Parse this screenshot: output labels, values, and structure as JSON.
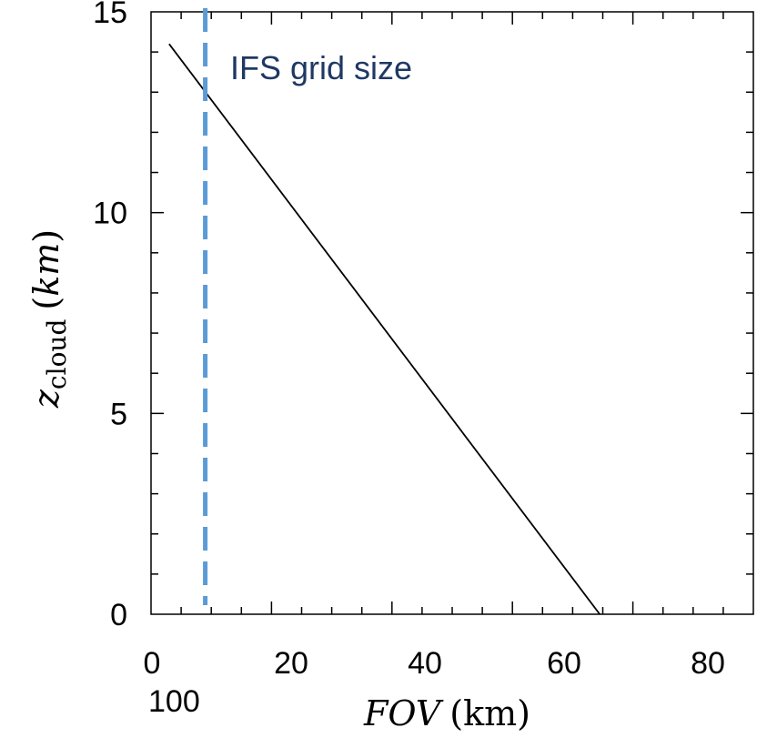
{
  "chart_data": {
    "type": "line",
    "title": "",
    "xlabel": {
      "italic": "FOV",
      "rest": "(km)"
    },
    "ylabel": {
      "italic": "z",
      "subscript": "cloud",
      "rest": "(km)",
      "rest_italic": "km"
    },
    "xlim": [
      0,
      100
    ],
    "ylim": [
      0,
      15
    ],
    "x_ticks": [
      0,
      20,
      40,
      60,
      80
    ],
    "x_tick_labels": [
      "0",
      "20",
      "40",
      "60",
      "80"
    ],
    "x_tick_label_end": "100",
    "y_ticks": [
      0,
      5,
      10,
      15
    ],
    "y_tick_labels": [
      "0",
      "5",
      "10",
      "15"
    ],
    "series": [
      {
        "x": [
          3,
          74.5
        ],
        "y": [
          14.2,
          0
        ],
        "color": "#000000"
      }
    ],
    "reference_line": {
      "x": 9,
      "label": "IFS grid size",
      "color": "#5b9bd5",
      "label_color": "#1f3864",
      "style": "dashed"
    },
    "grid": false,
    "minor_ticks": true
  }
}
